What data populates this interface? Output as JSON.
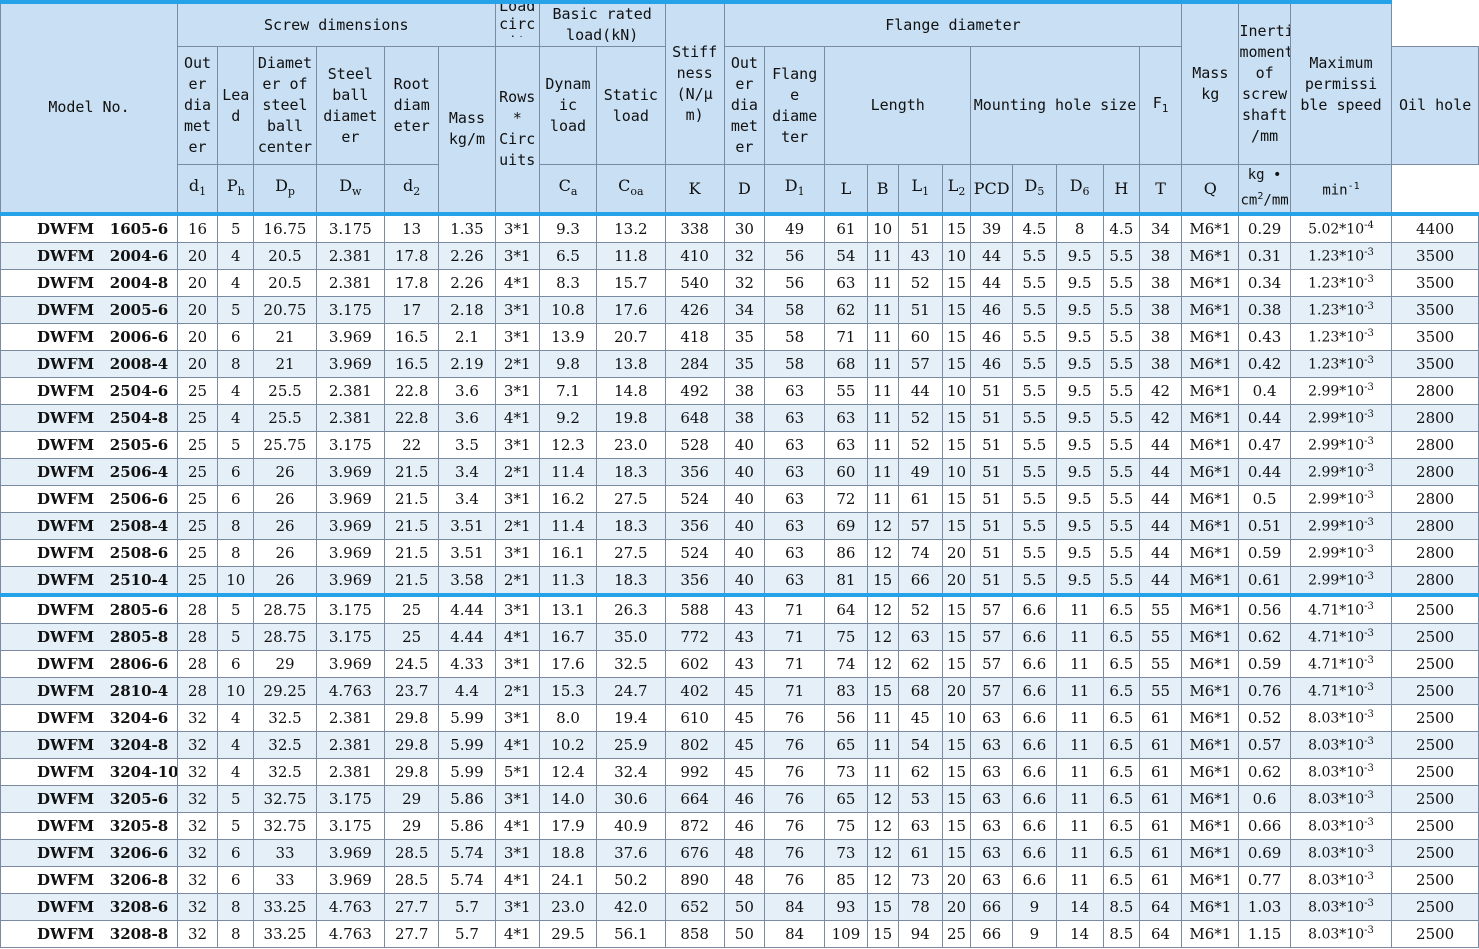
{
  "header": {
    "model_no": "Model No.",
    "screw_dimensions": "Screw dimensions",
    "load_circuits_cut": "Load circ uits",
    "basic_rated_load": "Basic rated load(kN)",
    "stiffness": "Stiff ness (N/μ m)",
    "flange_diameter_group": "Flange diameter",
    "inertial_moment": "Inertial moment of screw shaft /mm",
    "max_speed": "Maximum permissi ble speed",
    "outer_diameter": "Out er dia met er",
    "lead": "Lea d",
    "pitch_diameter": "Diamet er of steel ball center",
    "ball_diameter": "Steel ball diamet er",
    "root_diameter": "Root diam eter",
    "mass_per_m": "Mass kg/m",
    "rows_circuits": "Rows * Circ uits",
    "dynamic_load": "Dynam ic load",
    "static_load": "Static load",
    "nut_outer_diameter": "Out er dia met er",
    "flange_dia": "Flang e diame ter",
    "length": "Length",
    "mounting_hole_size": "Mounting hole size",
    "f1": "F",
    "f1_sub": "1",
    "oil_hole": "Oil hole",
    "mass_kg": "Mass kg"
  },
  "symbols": {
    "d1": "d",
    "d1_sub": "1",
    "ph": "P",
    "ph_sub": "h",
    "dp": "D",
    "dp_sub": "p",
    "dw": "D",
    "dw_sub": "w",
    "d2": "d",
    "d2_sub": "2",
    "ca": "C",
    "ca_sub": "a",
    "coa": "C",
    "coa_sub": "oa",
    "k": "K",
    "d": "D",
    "D1": "D",
    "D1_sub": "1",
    "l": "L",
    "b": "B",
    "l1": "L",
    "l1_sub": "1",
    "l2": "L",
    "l2_sub": "2",
    "pcd": "PCD",
    "d5": "D",
    "d5_sub": "5",
    "d6": "D",
    "d6_sub": "6",
    "h": "H",
    "t": "T",
    "q": "Q",
    "inertia_unit": "kg • cm",
    "inertia_unit_sup": "2",
    "inertia_unit_tail": "/mm",
    "speed_unit": "min",
    "speed_unit_sup": "-1"
  },
  "rows": [
    {
      "model": "DWFM   1605-6",
      "d1": "16",
      "ph": "5",
      "dp": "16.75",
      "dw": "3.175",
      "d2": "13",
      "mass_m": "1.35",
      "rc": "3*1",
      "ca": "9.3",
      "coa": "13.2",
      "k": "338",
      "d": "30",
      "D1": "49",
      "l": "61",
      "b": "10",
      "l1": "51",
      "l2": "15",
      "pcd": "39",
      "d5": "4.5",
      "d6": "8",
      "h": "4.5",
      "t": "34",
      "q": "M6*1",
      "mass": "0.29",
      "inertia_base": "5.02*10",
      "inertia_exp": "-4",
      "speed": "4400"
    },
    {
      "model": "DWFM   2004-6",
      "d1": "20",
      "ph": "4",
      "dp": "20.5",
      "dw": "2.381",
      "d2": "17.8",
      "mass_m": "2.26",
      "rc": "3*1",
      "ca": "6.5",
      "coa": "11.8",
      "k": "410",
      "d": "32",
      "D1": "56",
      "l": "54",
      "b": "11",
      "l1": "43",
      "l2": "10",
      "pcd": "44",
      "d5": "5.5",
      "d6": "9.5",
      "h": "5.5",
      "t": "38",
      "q": "M6*1",
      "mass": "0.31",
      "inertia_base": "1.23*10",
      "inertia_exp": "-3",
      "speed": "3500"
    },
    {
      "model": "DWFM   2004-8",
      "d1": "20",
      "ph": "4",
      "dp": "20.5",
      "dw": "2.381",
      "d2": "17.8",
      "mass_m": "2.26",
      "rc": "4*1",
      "ca": "8.3",
      "coa": "15.7",
      "k": "540",
      "d": "32",
      "D1": "56",
      "l": "63",
      "b": "11",
      "l1": "52",
      "l2": "15",
      "pcd": "44",
      "d5": "5.5",
      "d6": "9.5",
      "h": "5.5",
      "t": "38",
      "q": "M6*1",
      "mass": "0.34",
      "inertia_base": "1.23*10",
      "inertia_exp": "-3",
      "speed": "3500"
    },
    {
      "model": "DWFM   2005-6",
      "d1": "20",
      "ph": "5",
      "dp": "20.75",
      "dw": "3.175",
      "d2": "17",
      "mass_m": "2.18",
      "rc": "3*1",
      "ca": "10.8",
      "coa": "17.6",
      "k": "426",
      "d": "34",
      "D1": "58",
      "l": "62",
      "b": "11",
      "l1": "51",
      "l2": "15",
      "pcd": "46",
      "d5": "5.5",
      "d6": "9.5",
      "h": "5.5",
      "t": "38",
      "q": "M6*1",
      "mass": "0.38",
      "inertia_base": "1.23*10",
      "inertia_exp": "-3",
      "speed": "3500"
    },
    {
      "model": "DWFM   2006-6",
      "d1": "20",
      "ph": "6",
      "dp": "21",
      "dw": "3.969",
      "d2": "16.5",
      "mass_m": "2.1",
      "rc": "3*1",
      "ca": "13.9",
      "coa": "20.7",
      "k": "418",
      "d": "35",
      "D1": "58",
      "l": "71",
      "b": "11",
      "l1": "60",
      "l2": "15",
      "pcd": "46",
      "d5": "5.5",
      "d6": "9.5",
      "h": "5.5",
      "t": "38",
      "q": "M6*1",
      "mass": "0.43",
      "inertia_base": "1.23*10",
      "inertia_exp": "-3",
      "speed": "3500"
    },
    {
      "model": "DWFM   2008-4",
      "d1": "20",
      "ph": "8",
      "dp": "21",
      "dw": "3.969",
      "d2": "16.5",
      "mass_m": "2.19",
      "rc": "2*1",
      "ca": "9.8",
      "coa": "13.8",
      "k": "284",
      "d": "35",
      "D1": "58",
      "l": "68",
      "b": "11",
      "l1": "57",
      "l2": "15",
      "pcd": "46",
      "d5": "5.5",
      "d6": "9.5",
      "h": "5.5",
      "t": "38",
      "q": "M6*1",
      "mass": "0.42",
      "inertia_base": "1.23*10",
      "inertia_exp": "-3",
      "speed": "3500"
    },
    {
      "model": "DWFM   2504-6",
      "d1": "25",
      "ph": "4",
      "dp": "25.5",
      "dw": "2.381",
      "d2": "22.8",
      "mass_m": "3.6",
      "rc": "3*1",
      "ca": "7.1",
      "coa": "14.8",
      "k": "492",
      "d": "38",
      "D1": "63",
      "l": "55",
      "b": "11",
      "l1": "44",
      "l2": "10",
      "pcd": "51",
      "d5": "5.5",
      "d6": "9.5",
      "h": "5.5",
      "t": "42",
      "q": "M6*1",
      "mass": "0.4",
      "inertia_base": "2.99*10",
      "inertia_exp": "-3",
      "speed": "2800"
    },
    {
      "model": "DWFM   2504-8",
      "d1": "25",
      "ph": "4",
      "dp": "25.5",
      "dw": "2.381",
      "d2": "22.8",
      "mass_m": "3.6",
      "rc": "4*1",
      "ca": "9.2",
      "coa": "19.8",
      "k": "648",
      "d": "38",
      "D1": "63",
      "l": "63",
      "b": "11",
      "l1": "52",
      "l2": "15",
      "pcd": "51",
      "d5": "5.5",
      "d6": "9.5",
      "h": "5.5",
      "t": "42",
      "q": "M6*1",
      "mass": "0.44",
      "inertia_base": "2.99*10",
      "inertia_exp": "-3",
      "speed": "2800"
    },
    {
      "model": "DWFM   2505-6",
      "d1": "25",
      "ph": "5",
      "dp": "25.75",
      "dw": "3.175",
      "d2": "22",
      "mass_m": "3.5",
      "rc": "3*1",
      "ca": "12.3",
      "coa": "23.0",
      "k": "528",
      "d": "40",
      "D1": "63",
      "l": "63",
      "b": "11",
      "l1": "52",
      "l2": "15",
      "pcd": "51",
      "d5": "5.5",
      "d6": "9.5",
      "h": "5.5",
      "t": "44",
      "q": "M6*1",
      "mass": "0.47",
      "inertia_base": "2.99*10",
      "inertia_exp": "-3",
      "speed": "2800"
    },
    {
      "model": "DWFM   2506-4",
      "d1": "25",
      "ph": "6",
      "dp": "26",
      "dw": "3.969",
      "d2": "21.5",
      "mass_m": "3.4",
      "rc": "2*1",
      "ca": "11.4",
      "coa": "18.3",
      "k": "356",
      "d": "40",
      "D1": "63",
      "l": "60",
      "b": "11",
      "l1": "49",
      "l2": "10",
      "pcd": "51",
      "d5": "5.5",
      "d6": "9.5",
      "h": "5.5",
      "t": "44",
      "q": "M6*1",
      "mass": "0.44",
      "inertia_base": "2.99*10",
      "inertia_exp": "-3",
      "speed": "2800"
    },
    {
      "model": "DWFM   2506-6",
      "d1": "25",
      "ph": "6",
      "dp": "26",
      "dw": "3.969",
      "d2": "21.5",
      "mass_m": "3.4",
      "rc": "3*1",
      "ca": "16.2",
      "coa": "27.5",
      "k": "524",
      "d": "40",
      "D1": "63",
      "l": "72",
      "b": "11",
      "l1": "61",
      "l2": "15",
      "pcd": "51",
      "d5": "5.5",
      "d6": "9.5",
      "h": "5.5",
      "t": "44",
      "q": "M6*1",
      "mass": "0.5",
      "inertia_base": "2.99*10",
      "inertia_exp": "-3",
      "speed": "2800"
    },
    {
      "model": "DWFM   2508-4",
      "d1": "25",
      "ph": "8",
      "dp": "26",
      "dw": "3.969",
      "d2": "21.5",
      "mass_m": "3.51",
      "rc": "2*1",
      "ca": "11.4",
      "coa": "18.3",
      "k": "356",
      "d": "40",
      "D1": "63",
      "l": "69",
      "b": "12",
      "l1": "57",
      "l2": "15",
      "pcd": "51",
      "d5": "5.5",
      "d6": "9.5",
      "h": "5.5",
      "t": "44",
      "q": "M6*1",
      "mass": "0.51",
      "inertia_base": "2.99*10",
      "inertia_exp": "-3",
      "speed": "2800"
    },
    {
      "model": "DWFM   2508-6",
      "d1": "25",
      "ph": "8",
      "dp": "26",
      "dw": "3.969",
      "d2": "21.5",
      "mass_m": "3.51",
      "rc": "3*1",
      "ca": "16.1",
      "coa": "27.5",
      "k": "524",
      "d": "40",
      "D1": "63",
      "l": "86",
      "b": "12",
      "l1": "74",
      "l2": "20",
      "pcd": "51",
      "d5": "5.5",
      "d6": "9.5",
      "h": "5.5",
      "t": "44",
      "q": "M6*1",
      "mass": "0.59",
      "inertia_base": "2.99*10",
      "inertia_exp": "-3",
      "speed": "2800"
    },
    {
      "model": "DWFM   2510-4",
      "d1": "25",
      "ph": "10",
      "dp": "26",
      "dw": "3.969",
      "d2": "21.5",
      "mass_m": "3.58",
      "rc": "2*1",
      "ca": "11.3",
      "coa": "18.3",
      "k": "356",
      "d": "40",
      "D1": "63",
      "l": "81",
      "b": "15",
      "l1": "66",
      "l2": "20",
      "pcd": "51",
      "d5": "5.5",
      "d6": "9.5",
      "h": "5.5",
      "t": "44",
      "q": "M6*1",
      "mass": "0.61",
      "inertia_base": "2.99*10",
      "inertia_exp": "-3",
      "speed": "2800"
    },
    {
      "model": "DWFM   2805-6",
      "d1": "28",
      "ph": "5",
      "dp": "28.75",
      "dw": "3.175",
      "d2": "25",
      "mass_m": "4.44",
      "rc": "3*1",
      "ca": "13.1",
      "coa": "26.3",
      "k": "588",
      "d": "43",
      "D1": "71",
      "l": "64",
      "b": "12",
      "l1": "52",
      "l2": "15",
      "pcd": "57",
      "d5": "6.6",
      "d6": "11",
      "h": "6.5",
      "t": "55",
      "q": "M6*1",
      "mass": "0.56",
      "inertia_base": "4.71*10",
      "inertia_exp": "-3",
      "speed": "2500"
    },
    {
      "model": "DWFM   2805-8",
      "d1": "28",
      "ph": "5",
      "dp": "28.75",
      "dw": "3.175",
      "d2": "25",
      "mass_m": "4.44",
      "rc": "4*1",
      "ca": "16.7",
      "coa": "35.0",
      "k": "772",
      "d": "43",
      "D1": "71",
      "l": "75",
      "b": "12",
      "l1": "63",
      "l2": "15",
      "pcd": "57",
      "d5": "6.6",
      "d6": "11",
      "h": "6.5",
      "t": "55",
      "q": "M6*1",
      "mass": "0.62",
      "inertia_base": "4.71*10",
      "inertia_exp": "-3",
      "speed": "2500"
    },
    {
      "model": "DWFM   2806-6",
      "d1": "28",
      "ph": "6",
      "dp": "29",
      "dw": "3.969",
      "d2": "24.5",
      "mass_m": "4.33",
      "rc": "3*1",
      "ca": "17.6",
      "coa": "32.5",
      "k": "602",
      "d": "43",
      "D1": "71",
      "l": "74",
      "b": "12",
      "l1": "62",
      "l2": "15",
      "pcd": "57",
      "d5": "6.6",
      "d6": "11",
      "h": "6.5",
      "t": "55",
      "q": "M6*1",
      "mass": "0.59",
      "inertia_base": "4.71*10",
      "inertia_exp": "-3",
      "speed": "2500"
    },
    {
      "model": "DWFM   2810-4",
      "d1": "28",
      "ph": "10",
      "dp": "29.25",
      "dw": "4.763",
      "d2": "23.7",
      "mass_m": "4.4",
      "rc": "2*1",
      "ca": "15.3",
      "coa": "24.7",
      "k": "402",
      "d": "45",
      "D1": "71",
      "l": "83",
      "b": "15",
      "l1": "68",
      "l2": "20",
      "pcd": "57",
      "d5": "6.6",
      "d6": "11",
      "h": "6.5",
      "t": "55",
      "q": "M6*1",
      "mass": "0.76",
      "inertia_base": "4.71*10",
      "inertia_exp": "-3",
      "speed": "2500"
    },
    {
      "model": "DWFM   3204-6",
      "d1": "32",
      "ph": "4",
      "dp": "32.5",
      "dw": "2.381",
      "d2": "29.8",
      "mass_m": "5.99",
      "rc": "3*1",
      "ca": "8.0",
      "coa": "19.4",
      "k": "610",
      "d": "45",
      "D1": "76",
      "l": "56",
      "b": "11",
      "l1": "45",
      "l2": "10",
      "pcd": "63",
      "d5": "6.6",
      "d6": "11",
      "h": "6.5",
      "t": "61",
      "q": "M6*1",
      "mass": "0.52",
      "inertia_base": "8.03*10",
      "inertia_exp": "-3",
      "speed": "2500"
    },
    {
      "model": "DWFM   3204-8",
      "d1": "32",
      "ph": "4",
      "dp": "32.5",
      "dw": "2.381",
      "d2": "29.8",
      "mass_m": "5.99",
      "rc": "4*1",
      "ca": "10.2",
      "coa": "25.9",
      "k": "802",
      "d": "45",
      "D1": "76",
      "l": "65",
      "b": "11",
      "l1": "54",
      "l2": "15",
      "pcd": "63",
      "d5": "6.6",
      "d6": "11",
      "h": "6.5",
      "t": "61",
      "q": "M6*1",
      "mass": "0.57",
      "inertia_base": "8.03*10",
      "inertia_exp": "-3",
      "speed": "2500"
    },
    {
      "model": "DWFM   3204-10",
      "d1": "32",
      "ph": "4",
      "dp": "32.5",
      "dw": "2.381",
      "d2": "29.8",
      "mass_m": "5.99",
      "rc": "5*1",
      "ca": "12.4",
      "coa": "32.4",
      "k": "992",
      "d": "45",
      "D1": "76",
      "l": "73",
      "b": "11",
      "l1": "62",
      "l2": "15",
      "pcd": "63",
      "d5": "6.6",
      "d6": "11",
      "h": "6.5",
      "t": "61",
      "q": "M6*1",
      "mass": "0.62",
      "inertia_base": "8.03*10",
      "inertia_exp": "-3",
      "speed": "2500"
    },
    {
      "model": "DWFM   3205-6",
      "d1": "32",
      "ph": "5",
      "dp": "32.75",
      "dw": "3.175",
      "d2": "29",
      "mass_m": "5.86",
      "rc": "3*1",
      "ca": "14.0",
      "coa": "30.6",
      "k": "664",
      "d": "46",
      "D1": "76",
      "l": "65",
      "b": "12",
      "l1": "53",
      "l2": "15",
      "pcd": "63",
      "d5": "6.6",
      "d6": "11",
      "h": "6.5",
      "t": "61",
      "q": "M6*1",
      "mass": "0.6",
      "inertia_base": "8.03*10",
      "inertia_exp": "-3",
      "speed": "2500"
    },
    {
      "model": "DWFM   3205-8",
      "d1": "32",
      "ph": "5",
      "dp": "32.75",
      "dw": "3.175",
      "d2": "29",
      "mass_m": "5.86",
      "rc": "4*1",
      "ca": "17.9",
      "coa": "40.9",
      "k": "872",
      "d": "46",
      "D1": "76",
      "l": "75",
      "b": "12",
      "l1": "63",
      "l2": "15",
      "pcd": "63",
      "d5": "6.6",
      "d6": "11",
      "h": "6.5",
      "t": "61",
      "q": "M6*1",
      "mass": "0.66",
      "inertia_base": "8.03*10",
      "inertia_exp": "-3",
      "speed": "2500"
    },
    {
      "model": "DWFM   3206-6",
      "d1": "32",
      "ph": "6",
      "dp": "33",
      "dw": "3.969",
      "d2": "28.5",
      "mass_m": "5.74",
      "rc": "3*1",
      "ca": "18.8",
      "coa": "37.6",
      "k": "676",
      "d": "48",
      "D1": "76",
      "l": "73",
      "b": "12",
      "l1": "61",
      "l2": "15",
      "pcd": "63",
      "d5": "6.6",
      "d6": "11",
      "h": "6.5",
      "t": "61",
      "q": "M6*1",
      "mass": "0.69",
      "inertia_base": "8.03*10",
      "inertia_exp": "-3",
      "speed": "2500"
    },
    {
      "model": "DWFM   3206-8",
      "d1": "32",
      "ph": "6",
      "dp": "33",
      "dw": "3.969",
      "d2": "28.5",
      "mass_m": "5.74",
      "rc": "4*1",
      "ca": "24.1",
      "coa": "50.2",
      "k": "890",
      "d": "48",
      "D1": "76",
      "l": "85",
      "b": "12",
      "l1": "73",
      "l2": "20",
      "pcd": "63",
      "d5": "6.6",
      "d6": "11",
      "h": "6.5",
      "t": "61",
      "q": "M6*1",
      "mass": "0.77",
      "inertia_base": "8.03*10",
      "inertia_exp": "-3",
      "speed": "2500"
    },
    {
      "model": "DWFM   3208-6",
      "d1": "32",
      "ph": "8",
      "dp": "33.25",
      "dw": "4.763",
      "d2": "27.7",
      "mass_m": "5.7",
      "rc": "3*1",
      "ca": "23.0",
      "coa": "42.0",
      "k": "652",
      "d": "50",
      "D1": "84",
      "l": "93",
      "b": "15",
      "l1": "78",
      "l2": "20",
      "pcd": "66",
      "d5": "9",
      "d6": "14",
      "h": "8.5",
      "t": "64",
      "q": "M6*1",
      "mass": "1.03",
      "inertia_base": "8.03*10",
      "inertia_exp": "-3",
      "speed": "2500"
    },
    {
      "model": "DWFM   3208-8",
      "d1": "32",
      "ph": "8",
      "dp": "33.25",
      "dw": "4.763",
      "d2": "27.7",
      "mass_m": "5.7",
      "rc": "4*1",
      "ca": "29.5",
      "coa": "56.1",
      "k": "858",
      "d": "50",
      "D1": "84",
      "l": "109",
      "b": "15",
      "l1": "94",
      "l2": "25",
      "pcd": "66",
      "d5": "9",
      "d6": "14",
      "h": "8.5",
      "t": "64",
      "q": "M6*1",
      "mass": "1.15",
      "inertia_base": "8.03*10",
      "inertia_exp": "-3",
      "speed": "2500"
    }
  ]
}
